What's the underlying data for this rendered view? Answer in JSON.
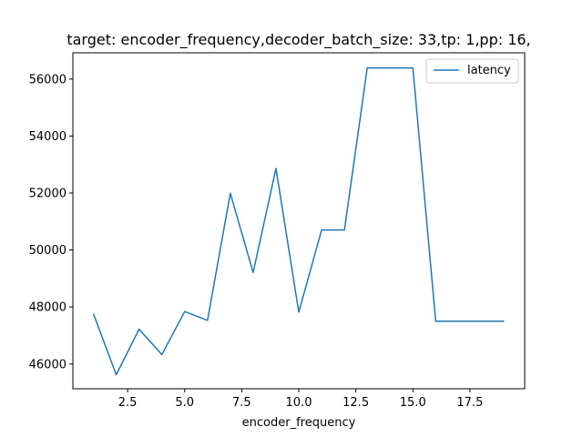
{
  "chart_data": {
    "type": "line",
    "title": "target: encoder_frequency,decoder_batch_size: 33,tp: 1,pp: 16,",
    "xlabel": "encoder_frequency",
    "ylabel": "",
    "x": [
      1,
      2,
      3,
      4,
      5,
      6,
      7,
      8,
      9,
      10,
      11,
      12,
      13,
      14,
      15,
      16,
      17,
      18,
      19
    ],
    "series": [
      {
        "name": "latency",
        "color": "#1f77b4",
        "values": [
          47760,
          45620,
          47220,
          46330,
          47840,
          47530,
          51990,
          49210,
          52860,
          47820,
          50700,
          50700,
          56390,
          56390,
          56390,
          47500,
          47500,
          47500,
          47500
        ]
      }
    ],
    "xlim": [
      0.1,
      19.9
    ],
    "ylim": [
      45130,
      56920
    ],
    "xticks": [
      2.5,
      5.0,
      7.5,
      10.0,
      12.5,
      15.0,
      17.5
    ],
    "xtick_labels": [
      "2.5",
      "5.0",
      "7.5",
      "10.0",
      "12.5",
      "15.0",
      "17.5"
    ],
    "yticks": [
      46000,
      48000,
      50000,
      52000,
      54000,
      56000
    ],
    "ytick_labels": [
      "46000",
      "48000",
      "50000",
      "52000",
      "54000",
      "56000"
    ],
    "grid": false,
    "legend_position": "top-right"
  }
}
